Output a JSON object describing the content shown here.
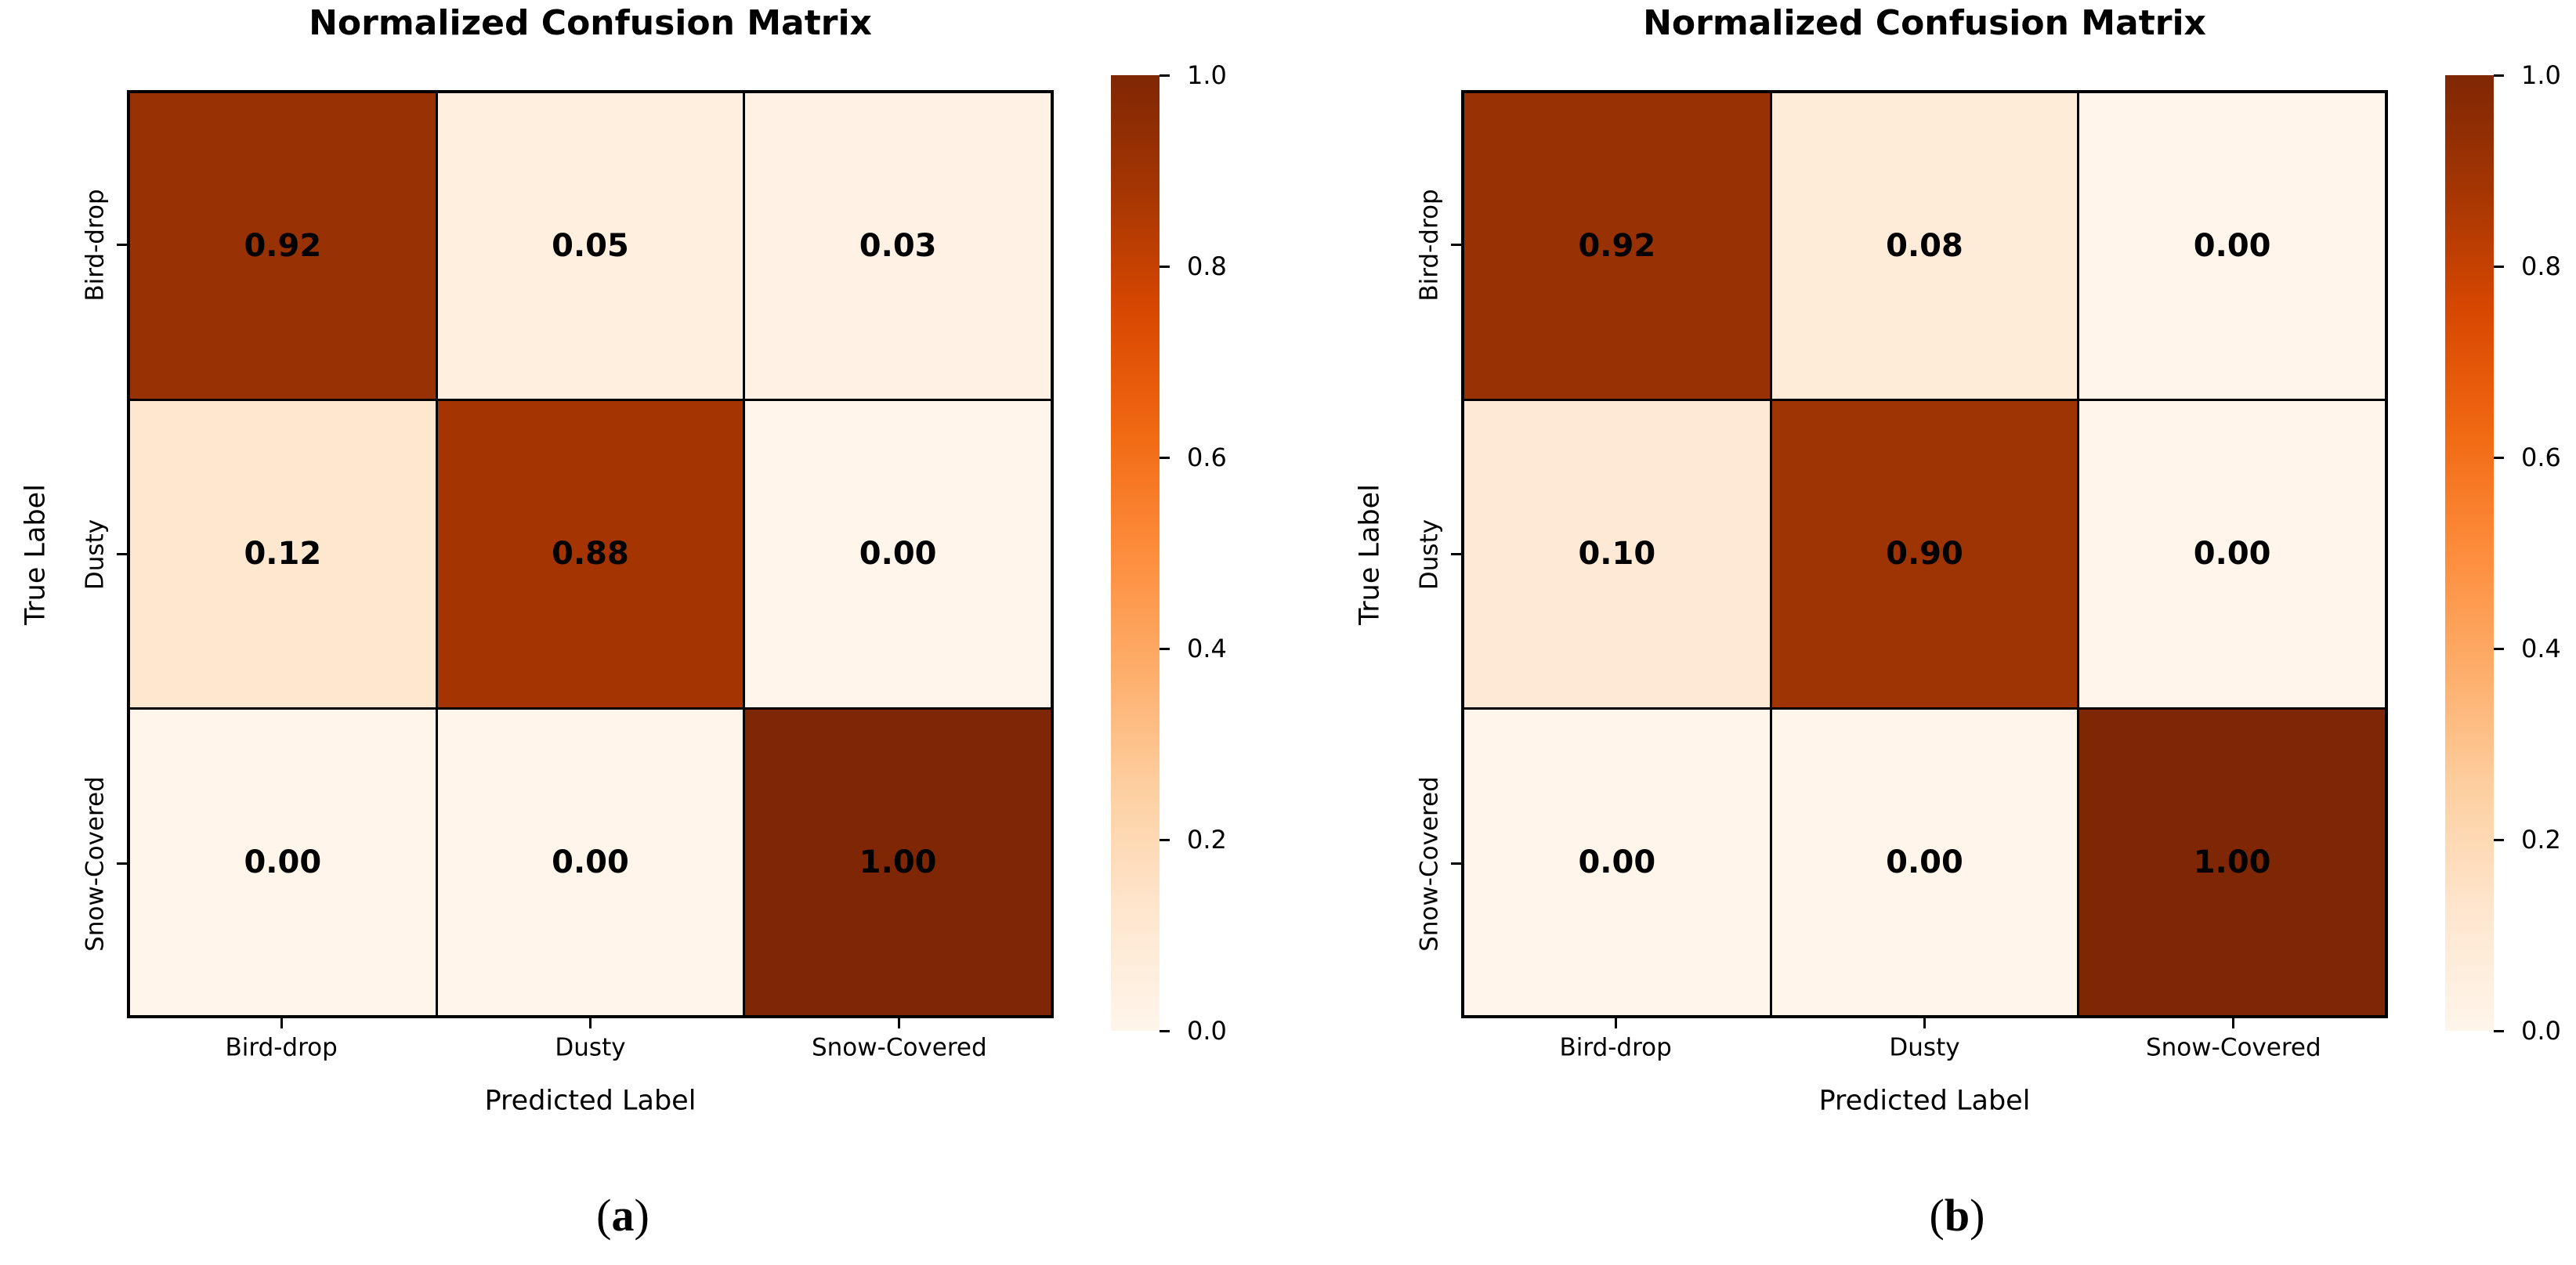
{
  "background": "#ffffff",
  "text_color": "#000000",
  "colormap": {
    "name": "Oranges",
    "stops": [
      [
        0.0,
        "#fff5eb"
      ],
      [
        0.125,
        "#fee6ce"
      ],
      [
        0.25,
        "#fdd0a2"
      ],
      [
        0.375,
        "#fdae6b"
      ],
      [
        0.5,
        "#fd8d3c"
      ],
      [
        0.625,
        "#f16913"
      ],
      [
        0.75,
        "#d94801"
      ],
      [
        0.875,
        "#a63603"
      ],
      [
        1.0,
        "#7f2704"
      ]
    ]
  },
  "chart_data": [
    {
      "type": "heatmap",
      "title": "Normalized Confusion Matrix",
      "xlabel": "Predicted Label",
      "ylabel": "True Label",
      "x_tick_labels": [
        "Bird-drop",
        "Dusty",
        "Snow-Covered"
      ],
      "y_tick_labels": [
        "Bird-drop",
        "Dusty",
        "Snow-Covered"
      ],
      "values": [
        [
          0.92,
          0.05,
          0.03
        ],
        [
          0.12,
          0.88,
          0.0
        ],
        [
          0.0,
          0.0,
          1.0
        ]
      ],
      "value_labels": [
        [
          "0.92",
          "0.05",
          "0.03"
        ],
        [
          "0.12",
          "0.88",
          "0.00"
        ],
        [
          "0.00",
          "0.00",
          "1.00"
        ]
      ],
      "vmin": 0.0,
      "vmax": 1.0,
      "grid": false,
      "colorbar": {
        "position": "right",
        "ticks": [
          "1.0",
          "0.8",
          "0.6",
          "0.4",
          "0.2",
          "0.0"
        ]
      },
      "caption": {
        "open": "(",
        "letter": "a",
        "close": ")"
      }
    },
    {
      "type": "heatmap",
      "title": "Normalized Confusion Matrix",
      "xlabel": "Predicted Label",
      "ylabel": "True Label",
      "x_tick_labels": [
        "Bird-drop",
        "Dusty",
        "Snow-Covered"
      ],
      "y_tick_labels": [
        "Bird-drop",
        "Dusty",
        "Snow-Covered"
      ],
      "values": [
        [
          0.92,
          0.08,
          0.0
        ],
        [
          0.1,
          0.9,
          0.0
        ],
        [
          0.0,
          0.0,
          1.0
        ]
      ],
      "value_labels": [
        [
          "0.92",
          "0.08",
          "0.00"
        ],
        [
          "0.10",
          "0.90",
          "0.00"
        ],
        [
          "0.00",
          "0.00",
          "1.00"
        ]
      ],
      "vmin": 0.0,
      "vmax": 1.0,
      "grid": false,
      "colorbar": {
        "position": "right",
        "ticks": [
          "1.0",
          "0.8",
          "0.6",
          "0.4",
          "0.2",
          "0.0"
        ]
      },
      "caption": {
        "open": "(",
        "letter": "b",
        "close": ")"
      }
    }
  ]
}
